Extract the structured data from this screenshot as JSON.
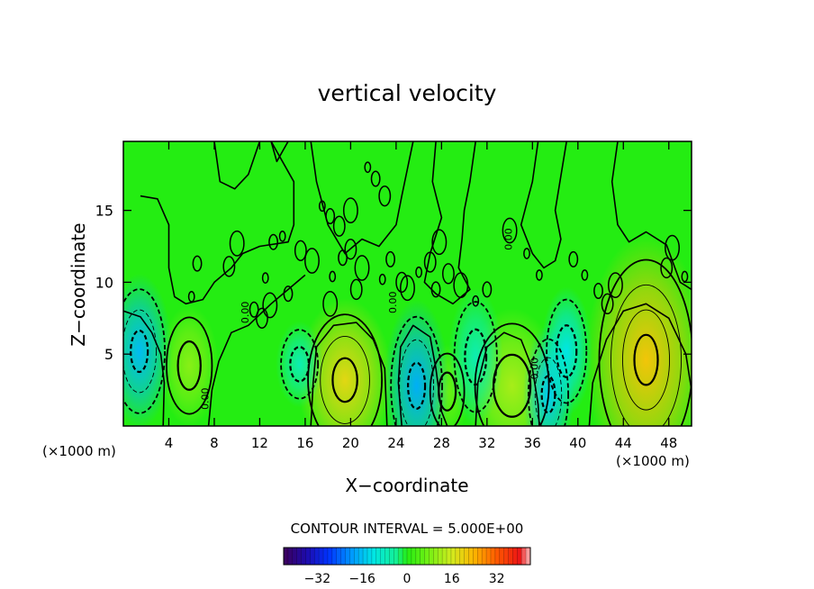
{
  "chart_data": {
    "type": "heatmap",
    "title": "vertical velocity",
    "xlabel": "X−coordinate",
    "ylabel": "Z−coordinate",
    "x_unit_left": "(×1000 m)",
    "x_unit_right": "(×1000 m)",
    "xlim": [
      0,
      50
    ],
    "ylim": [
      0,
      19.8
    ],
    "x_ticks": [
      4,
      8,
      12,
      16,
      20,
      24,
      28,
      32,
      36,
      40,
      44,
      48
    ],
    "x_tick_labels": [
      "4",
      "8",
      "12",
      "16",
      "20",
      "24",
      "28",
      "32",
      "36",
      "40",
      "44",
      "48"
    ],
    "y_ticks": [
      5,
      10,
      15
    ],
    "y_tick_labels": [
      "5",
      "10",
      "15"
    ],
    "contour_interval_label": "CONTOUR INTERVAL =  5.000E+00",
    "contour_interval": 5,
    "contour_labels": [
      {
        "text": "0.00",
        "x": 7.5,
        "y": 1.9
      },
      {
        "text": "0.00",
        "x": 34.2,
        "y": 13.0
      },
      {
        "text": "0.00",
        "x": 36.5,
        "y": 4.0
      },
      {
        "text": "0.00",
        "x": 11.0,
        "y": 7.9
      },
      {
        "text": "0.00",
        "x": 24.0,
        "y": 8.6
      }
    ],
    "colorbar": {
      "range": [
        -44,
        44
      ],
      "tick_values": [
        -32,
        -16,
        0,
        16,
        32
      ],
      "tick_labels": [
        "−32",
        "−16",
        "0",
        "16",
        "32"
      ]
    },
    "features": [
      {
        "kind": "updraft",
        "x": 19.5,
        "z": 3.2,
        "peak": 14
      },
      {
        "kind": "updraft",
        "x": 46.0,
        "z": 4.6,
        "peak": 16
      },
      {
        "kind": "updraft",
        "x": 34.2,
        "z": 2.8,
        "peak": 9
      },
      {
        "kind": "updraft",
        "x": 5.8,
        "z": 4.2,
        "peak": 7
      },
      {
        "kind": "updraft",
        "x": 28.5,
        "z": 2.4,
        "peak": 5
      },
      {
        "kind": "downdraft",
        "x": 25.8,
        "z": 2.8,
        "peak": -13
      },
      {
        "kind": "downdraft",
        "x": 1.4,
        "z": 5.2,
        "peak": -12
      },
      {
        "kind": "downdraft",
        "x": 37.4,
        "z": 2.2,
        "peak": -11
      },
      {
        "kind": "downdraft",
        "x": 39.0,
        "z": 5.2,
        "peak": -9
      },
      {
        "kind": "downdraft",
        "x": 15.5,
        "z": 4.3,
        "peak": -5
      },
      {
        "kind": "downdraft",
        "x": 31.0,
        "z": 4.8,
        "peak": -5
      }
    ]
  }
}
